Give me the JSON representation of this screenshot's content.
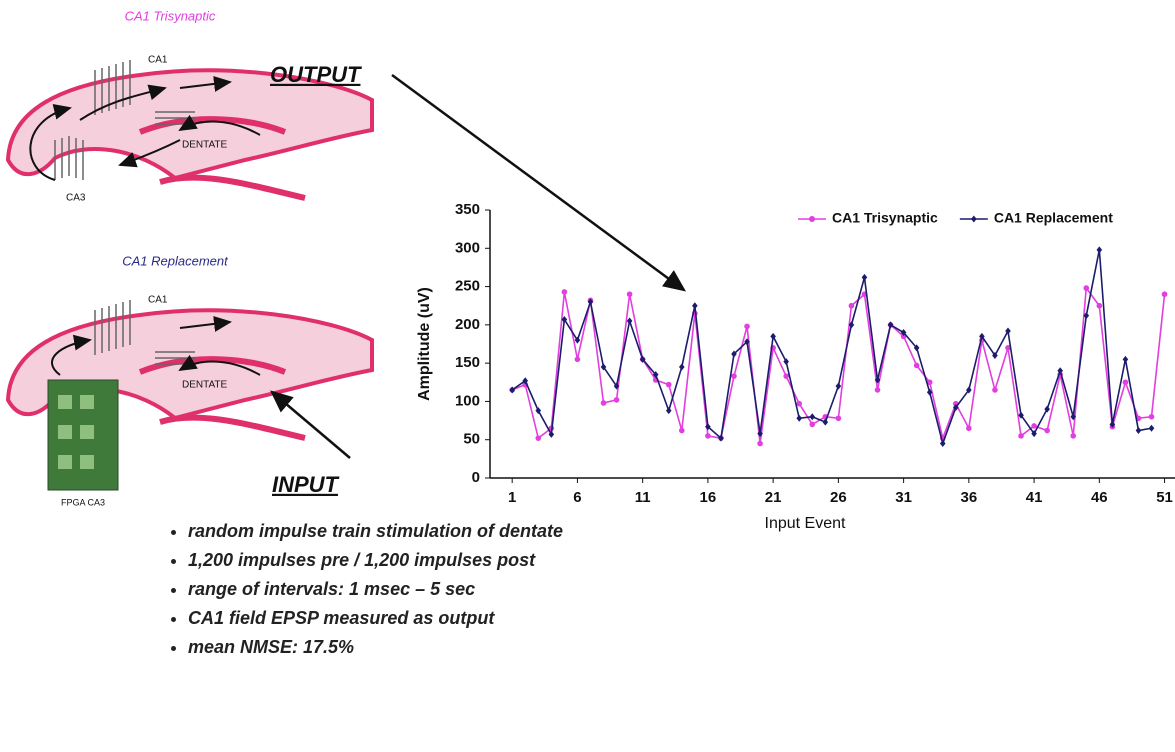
{
  "diagrams": {
    "top": {
      "title": "CA1 Trisynaptic",
      "labels": [
        "CA1",
        "DENTATE",
        "CA3"
      ]
    },
    "bottom": {
      "title": "CA1 Replacement",
      "labels": [
        "CA1",
        "DENTATE",
        "FPGA CA3"
      ]
    },
    "output_label": "OUTPUT",
    "input_label": "INPUT"
  },
  "bullets": [
    "random impulse train stimulation of dentate",
    "1,200 impulses pre / 1,200 impulses post",
    "range of intervals: 1 msec – 5 sec",
    "CA1 field EPSP measured as output",
    "mean NMSE: 17.5%"
  ],
  "chart_data": {
    "type": "line",
    "x_label": "Input Event",
    "y_label": "Amplitude (uV)",
    "x": [
      1,
      2,
      3,
      4,
      5,
      6,
      7,
      8,
      9,
      10,
      11,
      12,
      13,
      14,
      15,
      16,
      17,
      18,
      19,
      20,
      21,
      22,
      23,
      24,
      25,
      26,
      27,
      28,
      29,
      30,
      31,
      32,
      33,
      34,
      35,
      36,
      37,
      38,
      39,
      40,
      41,
      42,
      43,
      44,
      45,
      46,
      47,
      48,
      49,
      50,
      51
    ],
    "xlim": [
      -0.7,
      51.8
    ],
    "xticks": [
      1,
      6,
      11,
      16,
      21,
      26,
      31,
      36,
      41,
      46,
      51
    ],
    "ylim": [
      0,
      350
    ],
    "yticks": [
      0,
      50,
      100,
      150,
      200,
      250,
      300,
      350
    ],
    "legend": "top-right",
    "series": [
      {
        "name": "CA1 Trisynaptic",
        "color": "#e23ee0",
        "values": [
          115,
          122,
          52,
          65,
          243,
          155,
          232,
          98,
          102,
          240,
          155,
          128,
          122,
          62,
          215,
          55,
          52,
          133,
          198,
          45,
          170,
          133,
          97,
          70,
          80,
          78,
          225,
          240,
          115,
          200,
          185,
          147,
          125,
          52,
          97,
          65,
          180,
          115,
          170,
          55,
          68,
          62,
          135,
          55,
          248,
          225,
          67,
          125,
          78,
          80,
          240
        ]
      },
      {
        "name": "CA1 Replacement",
        "color": "#1c1c6c",
        "values": [
          115,
          127,
          88,
          57,
          207,
          180,
          230,
          145,
          120,
          205,
          155,
          135,
          88,
          145,
          225,
          67,
          52,
          162,
          178,
          58,
          185,
          152,
          78,
          80,
          73,
          120,
          200,
          262,
          128,
          200,
          190,
          170,
          112,
          45,
          92,
          115,
          185,
          160,
          192,
          82,
          58,
          90,
          140,
          80,
          212,
          298,
          70,
          155,
          62,
          65,
          null
        ]
      }
    ]
  }
}
